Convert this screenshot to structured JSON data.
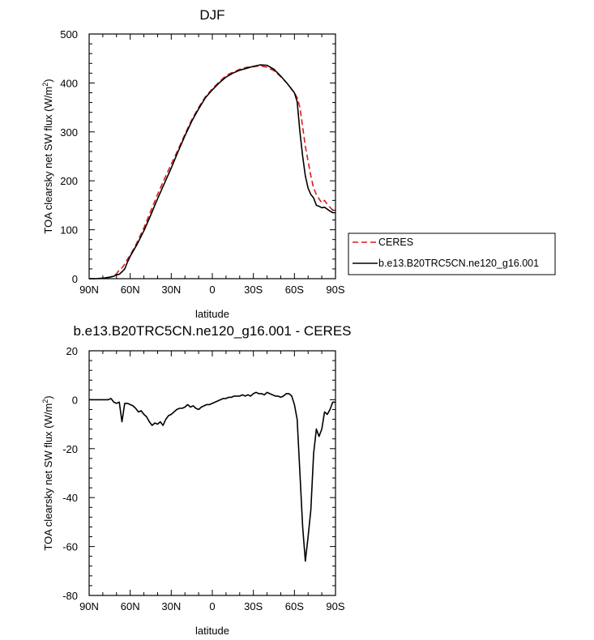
{
  "chart_data": [
    {
      "type": "line",
      "title": "DJF",
      "xlabel": "latitude",
      "ylabel": "TOA clearsky net SW flux (W/m",
      "ylabel_sup": "2",
      "ylabel_end": ")",
      "xlim": [
        90,
        -90
      ],
      "ylim": [
        0,
        500
      ],
      "x_ticks": [
        90,
        60,
        30,
        0,
        -30,
        -60,
        -90
      ],
      "x_tick_labels": [
        "90N",
        "60N",
        "30N",
        "0",
        "30S",
        "60S",
        "90S"
      ],
      "y_ticks": [
        0,
        100,
        200,
        300,
        400,
        500
      ],
      "y_tick_labels": [
        "0",
        "100",
        "200",
        "300",
        "400",
        "500"
      ],
      "grid": false,
      "legend_position": "right",
      "series": [
        {
          "name": "CERES",
          "color": "#e0191b",
          "dash": "dashed",
          "x": [
            90,
            85,
            80,
            75,
            72,
            70,
            68,
            66,
            64,
            62,
            60,
            55,
            50,
            45,
            40,
            35,
            30,
            25,
            20,
            15,
            10,
            5,
            0,
            -5,
            -10,
            -15,
            -20,
            -25,
            -30,
            -35,
            -40,
            -45,
            -50,
            -55,
            -60,
            -62,
            -64,
            -66,
            -68,
            -70,
            -72,
            -74,
            -76,
            -78,
            -80,
            -82,
            -84,
            -86,
            -88,
            -90
          ],
          "y": [
            0,
            0,
            1,
            3,
            6,
            10,
            18,
            22,
            30,
            40,
            48,
            74,
            104,
            138,
            172,
            204,
            234,
            264,
            295,
            325,
            350,
            372,
            388,
            402,
            415,
            422,
            428,
            432,
            433,
            435,
            432,
            425,
            413,
            398,
            380,
            370,
            350,
            310,
            270,
            240,
            210,
            185,
            172,
            163,
            155,
            160,
            152,
            146,
            140,
            136
          ]
        },
        {
          "name": "b.e13.B20TRC5CN.ne120_g16.001",
          "color": "#000000",
          "dash": "solid",
          "x": [
            90,
            85,
            80,
            75,
            72,
            70,
            68,
            66,
            64,
            62,
            60,
            55,
            50,
            45,
            40,
            35,
            30,
            25,
            20,
            15,
            10,
            5,
            0,
            -5,
            -10,
            -15,
            -20,
            -25,
            -30,
            -35,
            -40,
            -45,
            -50,
            -55,
            -60,
            -62,
            -64,
            -66,
            -68,
            -70,
            -72,
            -74,
            -76,
            -78,
            -80,
            -82,
            -84,
            -86,
            -88,
            -90
          ],
          "y": [
            0,
            0,
            1,
            3,
            5,
            8,
            9,
            14,
            20,
            34,
            46,
            70,
            98,
            130,
            163,
            195,
            226,
            260,
            292,
            322,
            347,
            370,
            386,
            400,
            412,
            420,
            426,
            430,
            434,
            437,
            436,
            428,
            414,
            398,
            380,
            362,
            300,
            250,
            210,
            185,
            172,
            165,
            150,
            148,
            145,
            146,
            142,
            138,
            135,
            135
          ]
        }
      ]
    },
    {
      "type": "line",
      "title": "b.e13.B20TRC5CN.ne120_g16.001 - CERES",
      "xlabel": "latitude",
      "ylabel": "TOA clearsky net SW flux (W/m",
      "ylabel_sup": "2",
      "ylabel_end": ")",
      "xlim": [
        90,
        -90
      ],
      "ylim": [
        -80,
        20
      ],
      "x_ticks": [
        90,
        60,
        30,
        0,
        -30,
        -60,
        -90
      ],
      "x_tick_labels": [
        "90N",
        "60N",
        "30N",
        "0",
        "30S",
        "60S",
        "90S"
      ],
      "y_ticks": [
        -80,
        -60,
        -40,
        -20,
        0,
        20
      ],
      "y_tick_labels": [
        "-80",
        "-60",
        "-40",
        "-20",
        "0",
        "20"
      ],
      "grid": false,
      "series": [
        {
          "color": "#000000",
          "dash": "solid",
          "x": [
            90,
            85,
            80,
            76,
            74,
            72,
            70,
            68,
            66,
            64,
            62,
            60,
            58,
            56,
            54,
            52,
            50,
            48,
            46,
            44,
            42,
            40,
            38,
            36,
            34,
            32,
            30,
            28,
            26,
            24,
            22,
            20,
            18,
            16,
            14,
            12,
            10,
            8,
            6,
            4,
            2,
            0,
            -2,
            -4,
            -6,
            -8,
            -10,
            -12,
            -14,
            -16,
            -18,
            -20,
            -22,
            -24,
            -26,
            -28,
            -30,
            -32,
            -34,
            -36,
            -38,
            -40,
            -42,
            -44,
            -46,
            -48,
            -50,
            -52,
            -54,
            -56,
            -58,
            -60,
            -62,
            -64,
            -66,
            -68,
            -70,
            -72,
            -74,
            -76,
            -78,
            -80,
            -82,
            -84,
            -86,
            -88,
            -90
          ],
          "y": [
            0,
            0,
            0,
            0,
            0.5,
            -1,
            -1.5,
            -1,
            -9,
            -1.5,
            -1.5,
            -2,
            -2.5,
            -3.5,
            -5,
            -4.5,
            -6,
            -7,
            -9,
            -10.5,
            -9.5,
            -10,
            -9,
            -10.5,
            -8,
            -6.5,
            -6,
            -5,
            -4,
            -3.5,
            -3.5,
            -3,
            -2,
            -3,
            -2.5,
            -3.5,
            -4,
            -3,
            -2.5,
            -2,
            -2,
            -1.5,
            -1,
            -0.5,
            0,
            0.5,
            0.5,
            1,
            1,
            1.5,
            1.5,
            1.5,
            2,
            1.5,
            2,
            1.5,
            2.5,
            3,
            2.5,
            2.5,
            2,
            3,
            2.5,
            2,
            1.5,
            1.5,
            1,
            1.5,
            2.5,
            2.5,
            1.5,
            -2,
            -8,
            -30,
            -52,
            -66,
            -56,
            -45,
            -22,
            -12,
            -15,
            -12,
            -5,
            -6,
            -4,
            -1,
            -1
          ]
        }
      ]
    }
  ]
}
